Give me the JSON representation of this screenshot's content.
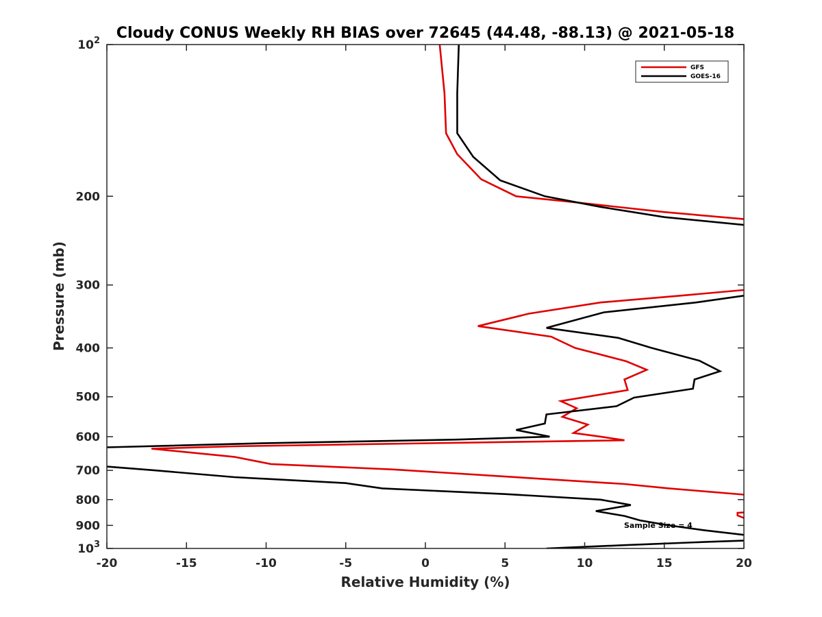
{
  "chart_data": {
    "type": "line",
    "title": "Cloudy CONUS Weekly RH BIAS over 72645 (44.48, -88.13) @ 2021-05-18",
    "xlabel": "Relative Humidity (%)",
    "ylabel": "Pressure (mb)",
    "xlim": [
      -20,
      20
    ],
    "ylim": [
      1000,
      100
    ],
    "yscale": "log",
    "x_ticks": [
      -20,
      -15,
      -10,
      -5,
      0,
      5,
      10,
      15,
      20
    ],
    "y_ticks": [
      {
        "value": 100,
        "label": "10",
        "sup": "2"
      },
      {
        "value": 200,
        "label": "200",
        "sup": ""
      },
      {
        "value": 300,
        "label": "300",
        "sup": ""
      },
      {
        "value": 400,
        "label": "400",
        "sup": ""
      },
      {
        "value": 500,
        "label": "500",
        "sup": ""
      },
      {
        "value": 600,
        "label": "600",
        "sup": ""
      },
      {
        "value": 700,
        "label": "700",
        "sup": ""
      },
      {
        "value": 800,
        "label": "800",
        "sup": ""
      },
      {
        "value": 900,
        "label": "900",
        "sup": ""
      },
      {
        "value": 1000,
        "label": "10",
        "sup": "3"
      }
    ],
    "grid": false,
    "legend_position": "top-right",
    "annotation": "Sample Size = 4",
    "series": [
      {
        "name": "GFS",
        "color": "#e00000",
        "points": [
          [
            0.9,
            100
          ],
          [
            1.2,
            125
          ],
          [
            1.3,
            150
          ],
          [
            2.0,
            165
          ],
          [
            3.5,
            185
          ],
          [
            5.7,
            200
          ],
          [
            9.0,
            205
          ],
          [
            15.0,
            215
          ],
          [
            20.0,
            222
          ],
          null,
          [
            20.0,
            307
          ],
          [
            16.0,
            315
          ],
          [
            11.0,
            325
          ],
          [
            6.5,
            342
          ],
          [
            3.3,
            362
          ],
          [
            7.9,
            380
          ],
          [
            9.4,
            400
          ],
          [
            12.6,
            425
          ],
          [
            13.9,
            442
          ],
          [
            12.5,
            462
          ],
          [
            12.7,
            485
          ],
          [
            8.5,
            510
          ],
          [
            9.5,
            527
          ],
          [
            8.6,
            548
          ],
          [
            10.2,
            568
          ],
          [
            9.3,
            590
          ],
          [
            11.0,
            600
          ],
          [
            12.5,
            610
          ],
          [
            5.0,
            615
          ],
          [
            -5.0,
            622
          ],
          [
            -12.0,
            627
          ],
          [
            -17.2,
            634
          ],
          [
            -12.0,
            658
          ],
          [
            -9.7,
            680
          ],
          [
            -2.0,
            697
          ],
          [
            5.0,
            720
          ],
          [
            12.5,
            745
          ],
          [
            15.3,
            760
          ],
          [
            20.0,
            782
          ],
          null,
          [
            20.0,
            848
          ],
          [
            19.6,
            850
          ],
          [
            19.6,
            860
          ],
          [
            20.0,
            870
          ]
        ]
      },
      {
        "name": "GOES-16",
        "color": "#000000",
        "points": [
          [
            2.1,
            100
          ],
          [
            2.0,
            125
          ],
          [
            2.0,
            150
          ],
          [
            3.0,
            167
          ],
          [
            4.7,
            186
          ],
          [
            7.5,
            200
          ],
          [
            11.0,
            210
          ],
          [
            15.0,
            220
          ],
          [
            20.0,
            228
          ],
          null,
          [
            20.0,
            315
          ],
          [
            17.0,
            325
          ],
          [
            11.2,
            340
          ],
          [
            7.6,
            365
          ],
          [
            12.1,
            382
          ],
          [
            14.2,
            400
          ],
          [
            17.2,
            424
          ],
          [
            18.5,
            445
          ],
          [
            16.9,
            462
          ],
          [
            16.8,
            482
          ],
          [
            13.1,
            502
          ],
          [
            12.0,
            522
          ],
          [
            7.6,
            542
          ],
          [
            7.5,
            565
          ],
          [
            5.7,
            582
          ],
          [
            7.8,
            600
          ],
          [
            2.0,
            608
          ],
          [
            -10.0,
            618
          ],
          [
            -20.0,
            630
          ],
          null,
          [
            -20.0,
            688
          ],
          [
            -17.0,
            700
          ],
          [
            -12.0,
            722
          ],
          [
            -5.0,
            742
          ],
          [
            -2.7,
            760
          ],
          [
            5.0,
            780
          ],
          [
            11.0,
            800
          ],
          [
            12.9,
            820
          ],
          [
            10.7,
            843
          ],
          [
            12.5,
            862
          ],
          [
            13.5,
            880
          ],
          [
            15.3,
            900
          ],
          [
            17.5,
            920
          ],
          [
            20.0,
            940
          ],
          null,
          [
            20.0,
            965
          ],
          [
            17.8,
            970
          ],
          [
            12.5,
            985
          ],
          [
            7.6,
            1000
          ]
        ]
      }
    ]
  }
}
